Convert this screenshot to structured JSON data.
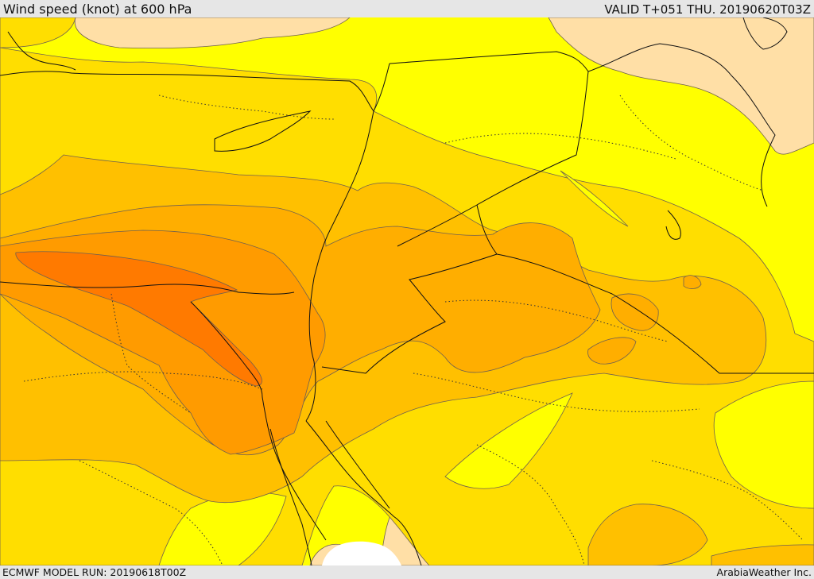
{
  "header": {
    "title": "Wind speed (knot) at 600 hPa",
    "valid_time": "VALID T+051 THU. 20190620T03Z"
  },
  "footer": {
    "model_run": "ECMWF MODEL RUN: 20190618T00Z",
    "credit": "ArabiaWeather Inc."
  },
  "map": {
    "variable": "wind speed",
    "units": "knot",
    "level_hpa": 600,
    "colors": {
      "lightest": "#ffdfa6",
      "light_yellow": "#ffff00",
      "yellow": "#ffde00",
      "gold": "#ffc000",
      "light_orange": "#ffae00",
      "orange": "#ff9b00",
      "dark_orange": "#ff7a00",
      "no_data": "#ffffff"
    }
  }
}
